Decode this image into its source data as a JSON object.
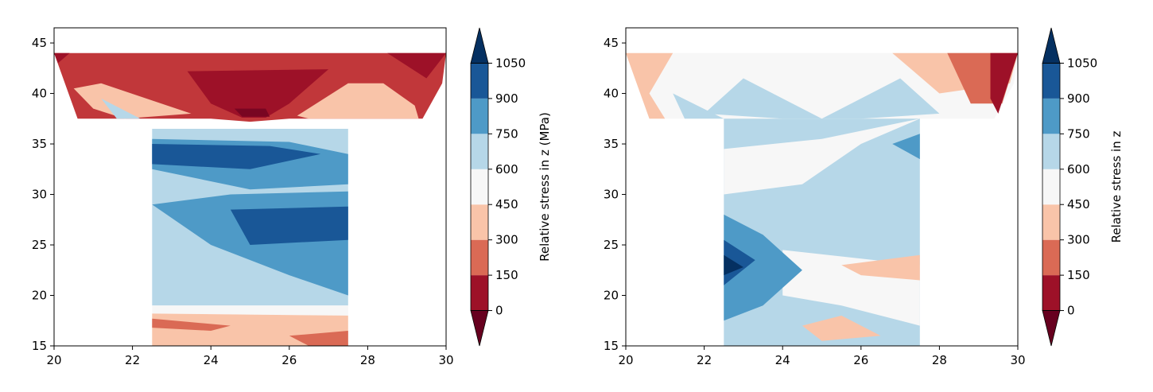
{
  "chart_data": [
    {
      "type": "heatmap",
      "subtype": "filled-contour",
      "title": "",
      "xlabel": "",
      "ylabel": "",
      "xlim": [
        20,
        30
      ],
      "ylim": [
        15,
        46.5
      ],
      "xticks": [
        "20",
        "22",
        "24",
        "26",
        "28",
        "30"
      ],
      "yticks": [
        "15",
        "20",
        "25",
        "30",
        "35",
        "40",
        "45"
      ],
      "colorbar": {
        "label": "Relative stress in z (MPa)",
        "ticks": [
          "0",
          "150",
          "300",
          "450",
          "600",
          "750",
          "900",
          "1050"
        ],
        "range": [
          0,
          1050
        ],
        "extend": "both",
        "colormap": "RdBu"
      },
      "regions": [
        {
          "name": "flange-top",
          "level": 150,
          "points": [
            [
              20,
              44
            ],
            [
              30,
              44
            ],
            [
              29.9,
              41
            ],
            [
              29.4,
              37.5
            ],
            [
              26,
              37.5
            ],
            [
              25,
              37.2
            ],
            [
              24,
              37.5
            ],
            [
              20.6,
              37.5
            ]
          ]
        },
        {
          "name": "flange-left-pale",
          "level": 375,
          "points": [
            [
              20.5,
              40.5
            ],
            [
              21.2,
              41
            ],
            [
              23.5,
              38
            ],
            [
              21.8,
              37.5
            ],
            [
              21,
              38.5
            ]
          ]
        },
        {
          "name": "flange-left-light",
          "level": 675,
          "points": [
            [
              21.2,
              39.5
            ],
            [
              22.2,
              37.5
            ],
            [
              21.6,
              37.5
            ]
          ]
        },
        {
          "name": "flange-right-pale",
          "level": 375,
          "points": [
            [
              26.2,
              37.8
            ],
            [
              27.5,
              41
            ],
            [
              28.4,
              41
            ],
            [
              29.2,
              38.8
            ],
            [
              29.3,
              37.5
            ],
            [
              26.5,
              37.5
            ]
          ]
        },
        {
          "name": "flange-centre-dark",
          "level": 75,
          "points": [
            [
              23.4,
              42.2
            ],
            [
              27,
              42.4
            ],
            [
              26,
              39
            ],
            [
              25.4,
              37.6
            ],
            [
              24.8,
              37.6
            ],
            [
              24,
              39
            ]
          ]
        },
        {
          "name": "flange-centre-darkest",
          "level": 25,
          "points": [
            [
              24.6,
              38.5
            ],
            [
              25.4,
              38.5
            ],
            [
              25.5,
              37.7
            ],
            [
              24.8,
              37.7
            ]
          ]
        },
        {
          "name": "flange-corner-right",
          "level": 75,
          "points": [
            [
              28.5,
              44
            ],
            [
              30,
              44
            ],
            [
              29.5,
              41.5
            ]
          ]
        },
        {
          "name": "flange-corner-left",
          "level": 75,
          "points": [
            [
              20,
              44
            ],
            [
              20.4,
              44
            ],
            [
              20.1,
              43
            ]
          ]
        },
        {
          "name": "web-base",
          "level": 675,
          "points": [
            [
              22.5,
              36.5
            ],
            [
              27.5,
              36.5
            ],
            [
              27.5,
              19
            ],
            [
              22.5,
              19
            ]
          ]
        },
        {
          "name": "web-band-upper",
          "level": 825,
          "points": [
            [
              22.5,
              35.5
            ],
            [
              26,
              35.2
            ],
            [
              27.5,
              34
            ],
            [
              27.5,
              31
            ],
            [
              25,
              30.5
            ],
            [
              22.5,
              32.5
            ]
          ]
        },
        {
          "name": "web-core-upper",
          "level": 975,
          "points": [
            [
              22.5,
              35
            ],
            [
              25.5,
              34.8
            ],
            [
              26.8,
              34
            ],
            [
              25,
              32.5
            ],
            [
              22.5,
              33
            ]
          ]
        },
        {
          "name": "web-band-middle",
          "level": 825,
          "points": [
            [
              22.5,
              29
            ],
            [
              24.5,
              30
            ],
            [
              27.5,
              30.3
            ],
            [
              27.5,
              20
            ],
            [
              26,
              22
            ],
            [
              24,
              25
            ]
          ]
        },
        {
          "name": "web-core-middle",
          "level": 975,
          "points": [
            [
              24.5,
              28.5
            ],
            [
              27.5,
              28.8
            ],
            [
              27.5,
              25.5
            ],
            [
              25,
              25
            ]
          ]
        },
        {
          "name": "web-lower-pale",
          "level": 525,
          "points": [
            [
              22.5,
              19
            ],
            [
              27.5,
              19
            ],
            [
              27.5,
              18
            ],
            [
              22.5,
              18.2
            ]
          ]
        },
        {
          "name": "web-base-pale",
          "level": 375,
          "points": [
            [
              22.5,
              18.2
            ],
            [
              27.5,
              18
            ],
            [
              27.5,
              15
            ],
            [
              22.5,
              15
            ]
          ]
        },
        {
          "name": "web-base-dark",
          "level": 225,
          "points": [
            [
              22.5,
              17.7
            ],
            [
              24.5,
              17
            ],
            [
              24,
              16.5
            ],
            [
              22.5,
              16.8
            ]
          ]
        },
        {
          "name": "web-base-right",
          "level": 225,
          "points": [
            [
              26,
              16
            ],
            [
              27.5,
              16.5
            ],
            [
              27.5,
              15
            ],
            [
              26.5,
              15
            ]
          ]
        }
      ]
    },
    {
      "type": "heatmap",
      "subtype": "filled-contour",
      "title": "",
      "xlabel": "",
      "ylabel": "",
      "xlim": [
        20,
        30
      ],
      "ylim": [
        15,
        46.5
      ],
      "xticks": [
        "20",
        "22",
        "24",
        "26",
        "28",
        "30"
      ],
      "yticks": [
        "15",
        "20",
        "25",
        "30",
        "35",
        "40",
        "45"
      ],
      "colorbar": {
        "label": "Relative stress in z",
        "ticks": [
          "0",
          "150",
          "300",
          "450",
          "600",
          "750",
          "900",
          "1050"
        ],
        "range": [
          0,
          1050
        ],
        "extend": "both",
        "colormap": "RdBu"
      },
      "regions": [
        {
          "name": "flange-base",
          "level": 525,
          "points": [
            [
              20,
              44
            ],
            [
              30,
              44
            ],
            [
              29.9,
              41
            ],
            [
              29.4,
              37.5
            ],
            [
              20.6,
              37.5
            ]
          ]
        },
        {
          "name": "flange-left-warm",
          "level": 375,
          "points": [
            [
              20,
              44
            ],
            [
              21.2,
              44
            ],
            [
              20.6,
              40
            ],
            [
              21,
              37.5
            ],
            [
              20.6,
              37.5
            ]
          ]
        },
        {
          "name": "flange-left-cool",
          "level": 675,
          "points": [
            [
              21.2,
              40
            ],
            [
              22.5,
              37.5
            ],
            [
              21.5,
              37.5
            ]
          ]
        },
        {
          "name": "flange-centre-cool",
          "level": 675,
          "points": [
            [
              22,
              38
            ],
            [
              23,
              41.5
            ],
            [
              25,
              37.5
            ],
            [
              27,
              41.5
            ],
            [
              28,
              38
            ],
            [
              26,
              37.5
            ],
            [
              24,
              37.5
            ]
          ]
        },
        {
          "name": "flange-right-1",
          "level": 375,
          "points": [
            [
              26.8,
              44
            ],
            [
              30,
              44
            ],
            [
              29.8,
              41
            ],
            [
              28,
              40
            ]
          ]
        },
        {
          "name": "flange-right-2",
          "level": 225,
          "points": [
            [
              28.2,
              44
            ],
            [
              30,
              44
            ],
            [
              29.6,
              39
            ],
            [
              28.8,
              39
            ]
          ]
        },
        {
          "name": "flange-right-3",
          "level": 75,
          "points": [
            [
              29.3,
              44
            ],
            [
              30,
              44
            ],
            [
              29.5,
              38
            ],
            [
              29.3,
              39.5
            ]
          ]
        },
        {
          "name": "web-base",
          "level": 675,
          "points": [
            [
              22.5,
              37.5
            ],
            [
              27.5,
              37.5
            ],
            [
              27.5,
              15
            ],
            [
              22.5,
              15
            ]
          ]
        },
        {
          "name": "web-pale-upper",
          "level": 525,
          "points": [
            [
              22.5,
              34.5
            ],
            [
              25,
              35.5
            ],
            [
              27.5,
              37.5
            ],
            [
              26,
              35
            ],
            [
              24.5,
              31
            ],
            [
              22.5,
              30
            ]
          ]
        },
        {
          "name": "web-pale-lower",
          "level": 525,
          "points": [
            [
              24,
              24.5
            ],
            [
              27.5,
              23
            ],
            [
              27.5,
              17
            ],
            [
              25.5,
              19
            ],
            [
              24,
              20
            ]
          ]
        },
        {
          "name": "web-warm",
          "level": 375,
          "points": [
            [
              25.5,
              23
            ],
            [
              27.5,
              24
            ],
            [
              27.5,
              21.5
            ],
            [
              26,
              22
            ]
          ]
        },
        {
          "name": "web-warm-bottom",
          "level": 375,
          "points": [
            [
              24.5,
              17
            ],
            [
              25.5,
              18
            ],
            [
              26.5,
              16
            ],
            [
              25,
              15.5
            ]
          ]
        },
        {
          "name": "web-right-blue",
          "level": 825,
          "points": [
            [
              26.8,
              35
            ],
            [
              27.5,
              36
            ],
            [
              27.5,
              33.5
            ]
          ]
        },
        {
          "name": "web-left-blue",
          "level": 825,
          "points": [
            [
              22.5,
              28
            ],
            [
              23.5,
              26
            ],
            [
              24.5,
              22.5
            ],
            [
              23.5,
              19
            ],
            [
              22.5,
              17.5
            ]
          ]
        },
        {
          "name": "web-left-core",
          "level": 975,
          "points": [
            [
              22.5,
              25.5
            ],
            [
              23.3,
              23.5
            ],
            [
              22.5,
              21
            ]
          ]
        },
        {
          "name": "web-left-darkest",
          "level": 1100,
          "points": [
            [
              22.5,
              24
            ],
            [
              23,
              22.8
            ],
            [
              22.5,
              22
            ]
          ]
        }
      ]
    }
  ]
}
